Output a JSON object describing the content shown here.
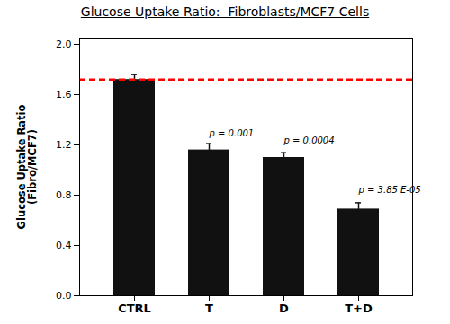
{
  "chart_data": {
    "type": "bar",
    "title": "Glucose Uptake Ratio:  Fibroblasts/MCF7 Cells",
    "ylabel": "Glucose Uptake Ratio\n(Fibro/MCF7)",
    "categories": [
      "CTRL",
      "T",
      "D",
      "T+D"
    ],
    "values": [
      1.72,
      1.16,
      1.1,
      0.69
    ],
    "errors": [
      0.04,
      0.05,
      0.038,
      0.05
    ],
    "color": "#111111",
    "reference_line": {
      "y": 1.72,
      "color": "#ff0000",
      "line_style": "dashed"
    },
    "annotations": [
      {
        "text": "p = 0.001",
        "category": "T",
        "y": 1.27
      },
      {
        "text": "p = 0.0004",
        "category": "D",
        "y": 1.21
      },
      {
        "text": "p = 3.85 E-05",
        "category": "T+D",
        "y": 0.82
      }
    ],
    "ylim": [
      0,
      2.05
    ],
    "yticks": [
      {
        "value": 0,
        "label": "0.0"
      },
      0.4,
      0.8,
      1.2,
      1.6,
      {
        "value": 2.0,
        "label": "2.0"
      }
    ],
    "grid": false
  }
}
